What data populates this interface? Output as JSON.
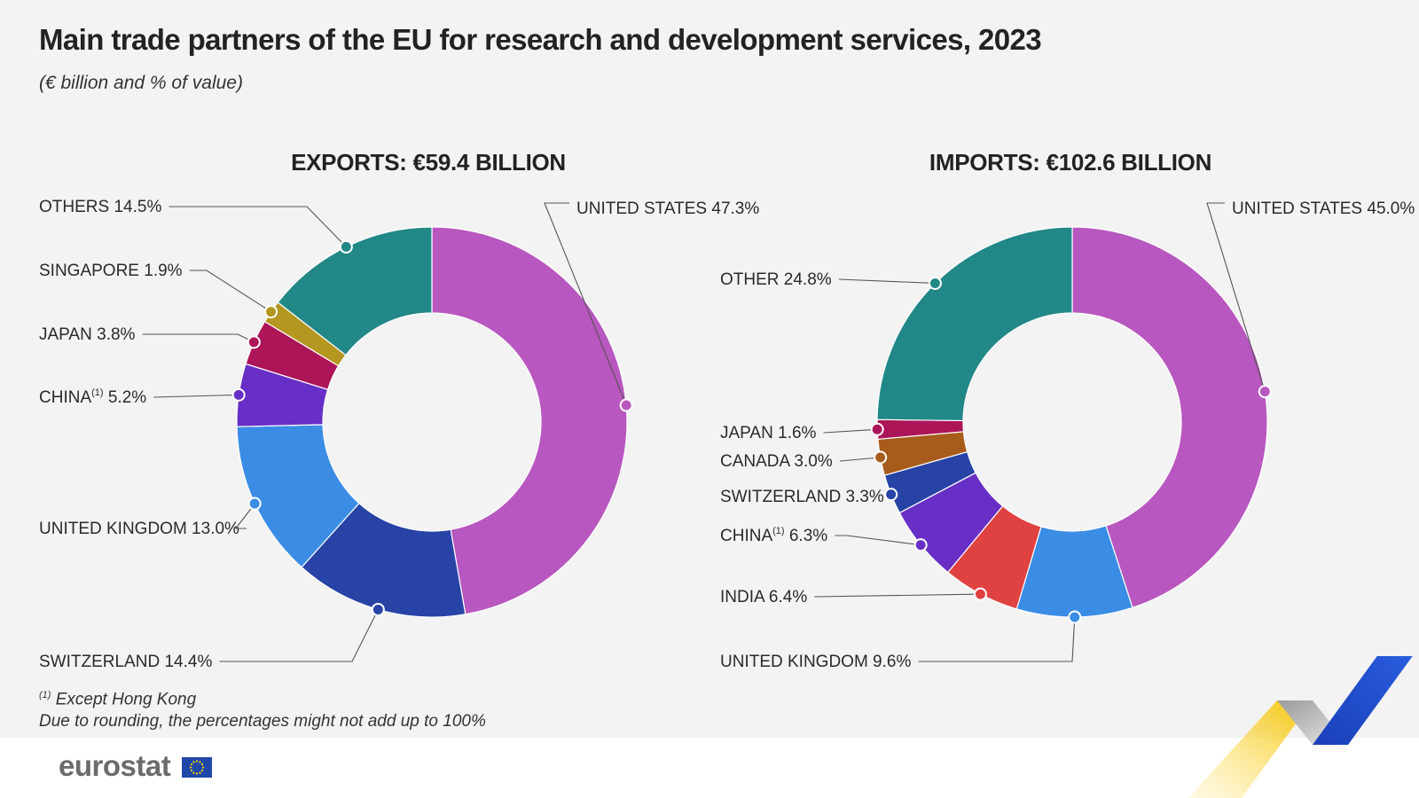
{
  "title": "Main trade partners of the EU for research and development services, 2023",
  "subtitle": "(€ billion and % of value)",
  "chart_data": [
    {
      "type": "pie",
      "variant": "donut",
      "title": "EXPORTS: €59.4 BILLION",
      "total": 59.4,
      "unit": "€ billion",
      "slices": [
        {
          "label": "UNITED STATES",
          "value": 47.3,
          "display": "47.3%",
          "color": "#b857bf"
        },
        {
          "label": "SWITZERLAND",
          "value": 14.4,
          "display": "14.4%",
          "color": "#2743a6"
        },
        {
          "label": "UNITED KINGDOM",
          "value": 13.0,
          "display": "13.0%",
          "color": "#3a8ce4"
        },
        {
          "label": "CHINA",
          "note": "(1)",
          "value": 5.2,
          "display": "5.2%",
          "color": "#672fc6"
        },
        {
          "label": "JAPAN",
          "value": 3.8,
          "display": "3.8%",
          "color": "#ad1559"
        },
        {
          "label": "SINGAPORE",
          "value": 1.9,
          "display": "1.9%",
          "color": "#b49721"
        },
        {
          "label": "OTHERS",
          "value": 14.5,
          "display": "14.5%",
          "color": "#228787"
        }
      ]
    },
    {
      "type": "pie",
      "variant": "donut",
      "title": "IMPORTS: €102.6 BILLION",
      "total": 102.6,
      "unit": "€ billion",
      "slices": [
        {
          "label": "UNITED STATES",
          "value": 45.0,
          "display": "45.0%",
          "color": "#b857bf"
        },
        {
          "label": "UNITED KINGDOM",
          "value": 9.6,
          "display": "9.6%",
          "color": "#3a8ce4"
        },
        {
          "label": "INDIA",
          "value": 6.4,
          "display": "6.4%",
          "color": "#e04141"
        },
        {
          "label": "CHINA",
          "note": "(1)",
          "value": 6.3,
          "display": "6.3%",
          "color": "#672fc6"
        },
        {
          "label": "SWITZERLAND",
          "value": 3.3,
          "display": "3.3%",
          "color": "#2743a6"
        },
        {
          "label": "CANADA",
          "value": 3.0,
          "display": "3.0%",
          "color": "#a85c1c"
        },
        {
          "label": "JAPAN",
          "value": 1.6,
          "display": "1.6%",
          "color": "#ad1559"
        },
        {
          "label": "OTHER",
          "value": 24.8,
          "display": "24.8%",
          "color": "#228787"
        }
      ]
    }
  ],
  "footnotes": {
    "note_marker": "(1)",
    "note_text": "Except Hong Kong",
    "rounding": "Due to rounding, the percentages might not add up to 100%"
  },
  "logo": {
    "text": "eurostat"
  }
}
